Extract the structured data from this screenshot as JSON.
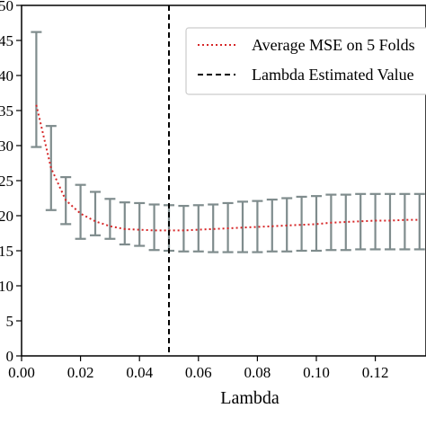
{
  "chart_data": {
    "type": "line",
    "title": "",
    "xlabel": "Lambda",
    "ylabel": "",
    "xlim": [
      0.0,
      0.1372
    ],
    "ylim": [
      0,
      50
    ],
    "x_ticks": [
      0.0,
      0.02,
      0.04,
      0.06,
      0.08,
      0.1,
      0.12
    ],
    "x_tick_labels": [
      "0.00",
      "0.02",
      "0.04",
      "0.06",
      "0.08",
      "0.10",
      "0.12"
    ],
    "y_ticks": [
      0,
      5,
      10,
      15,
      20,
      25,
      30,
      35,
      40,
      45,
      50
    ],
    "y_tick_labels": [
      "0",
      "5",
      "10",
      "15",
      "20",
      "25",
      "30",
      "35",
      "40",
      "45",
      "50"
    ],
    "grid": false,
    "legend_position": "top-right",
    "series": [
      {
        "name": "Average MSE on 5 Folds",
        "style": "dotted",
        "color": "#d62728",
        "x": [
          0.005,
          0.01,
          0.015,
          0.02,
          0.025,
          0.03,
          0.035,
          0.04,
          0.045,
          0.05,
          0.055,
          0.06,
          0.065,
          0.07,
          0.075,
          0.08,
          0.085,
          0.09,
          0.095,
          0.1,
          0.105,
          0.11,
          0.115,
          0.12,
          0.125,
          0.13,
          0.135
        ],
        "y": [
          35.8,
          26.8,
          22.2,
          20.3,
          19.2,
          18.5,
          18.1,
          18.0,
          17.9,
          17.9,
          17.9,
          18.0,
          18.1,
          18.2,
          18.3,
          18.4,
          18.5,
          18.6,
          18.7,
          18.8,
          19.0,
          19.1,
          19.2,
          19.3,
          19.3,
          19.4,
          19.4
        ],
        "err_low": [
          29.8,
          20.8,
          18.8,
          16.7,
          17.2,
          16.7,
          15.9,
          15.7,
          15.1,
          15.0,
          14.9,
          14.9,
          14.8,
          14.8,
          14.8,
          14.8,
          14.9,
          14.9,
          15.0,
          15.0,
          15.1,
          15.1,
          15.2,
          15.2,
          15.2,
          15.2,
          15.2
        ],
        "err_high": [
          46.2,
          32.8,
          25.5,
          24.4,
          23.4,
          22.4,
          21.9,
          21.8,
          21.6,
          21.5,
          21.4,
          21.5,
          21.6,
          21.8,
          22.0,
          22.1,
          22.3,
          22.5,
          22.7,
          22.8,
          23.0,
          23.0,
          23.1,
          23.1,
          23.1,
          23.1,
          23.1
        ],
        "err_color": "#7f8c8d"
      }
    ],
    "vertical_line": {
      "name": "Lambda Estimated Value",
      "x": 0.05,
      "style": "dashed",
      "color": "#000000"
    }
  }
}
